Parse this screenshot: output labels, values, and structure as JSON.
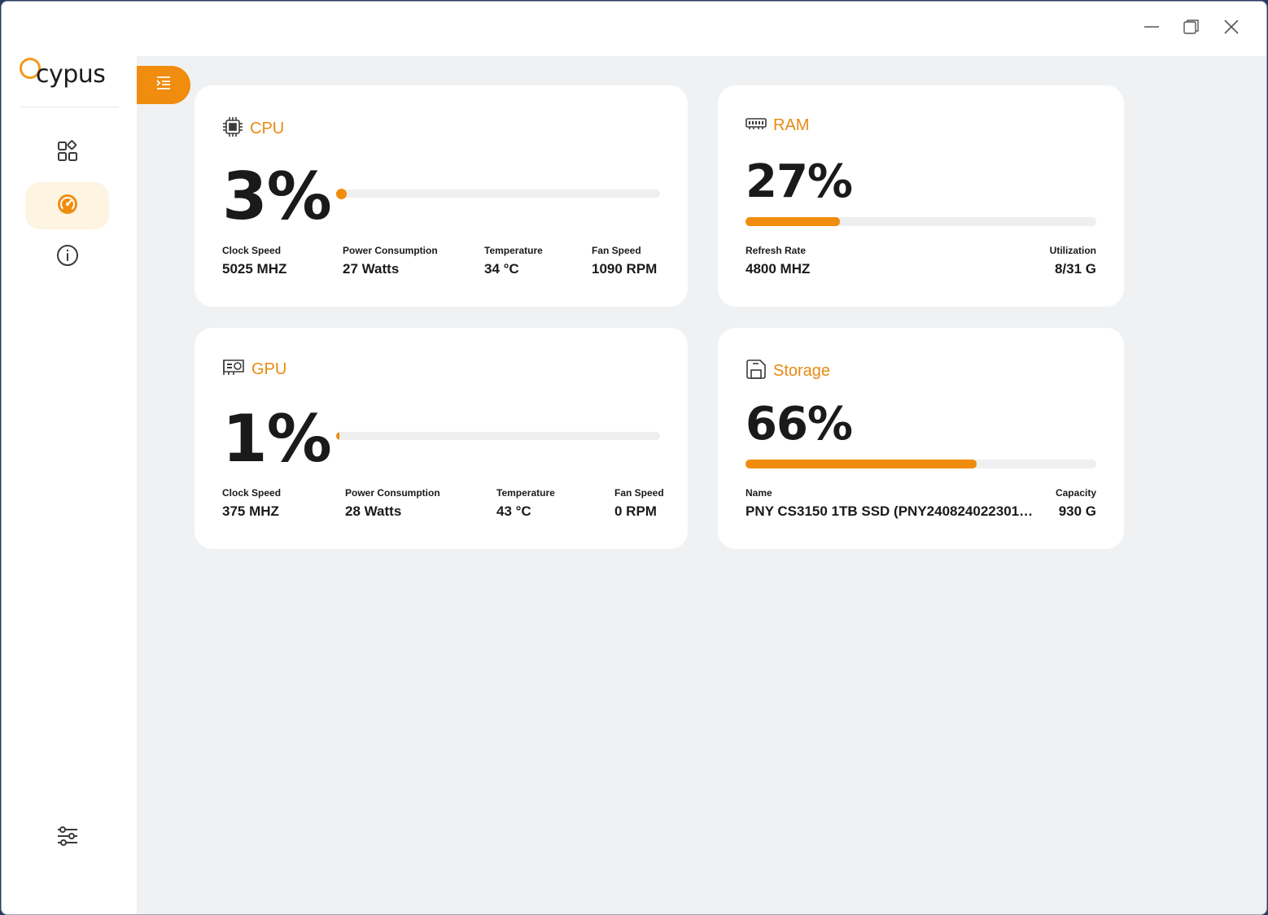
{
  "app": {
    "logo_text": "cypus"
  },
  "cards": {
    "cpu": {
      "title": "CPU",
      "percent_text": "3%",
      "percent": 3,
      "stats": [
        {
          "label": "Clock Speed",
          "value": "5025 MHZ"
        },
        {
          "label": "Power Consumption",
          "value": "27 Watts"
        },
        {
          "label": "Temperature",
          "value": "34 °C"
        },
        {
          "label": "Fan Speed",
          "value": "1090 RPM"
        }
      ]
    },
    "ram": {
      "title": "RAM",
      "percent_text": "27%",
      "percent": 27,
      "stats": [
        {
          "label": "Refresh Rate",
          "value": "4800 MHZ"
        },
        {
          "label": "Utilization",
          "value": "8/31 G"
        }
      ]
    },
    "gpu": {
      "title": "GPU",
      "percent_text": "1%",
      "percent": 1,
      "stats": [
        {
          "label": "Clock Speed",
          "value": "375 MHZ"
        },
        {
          "label": "Power Consumption",
          "value": "28 Watts"
        },
        {
          "label": "Temperature",
          "value": "43 °C"
        },
        {
          "label": "Fan Speed",
          "value": "0 RPM"
        }
      ]
    },
    "storage": {
      "title": "Storage",
      "percent_text": "66%",
      "percent": 66,
      "stats": [
        {
          "label": "Name",
          "value": "PNY CS3150 1TB SSD (PNY2408240223010..."
        },
        {
          "label": "Capacity",
          "value": "930 G"
        }
      ]
    }
  },
  "colors": {
    "accent": "#f08d0e",
    "accent_text": "#e88a12",
    "active_nav_bg": "#fdf4e2",
    "card_bg": "#ffffff",
    "content_bg": "#f0f1f3"
  },
  "icons": {
    "nav": [
      "dashboard-icon",
      "speedometer-icon",
      "info-icon",
      "sliders-icon"
    ],
    "cards": [
      "chip-icon",
      "memory-icon",
      "gpu-icon",
      "storage-icon"
    ]
  }
}
